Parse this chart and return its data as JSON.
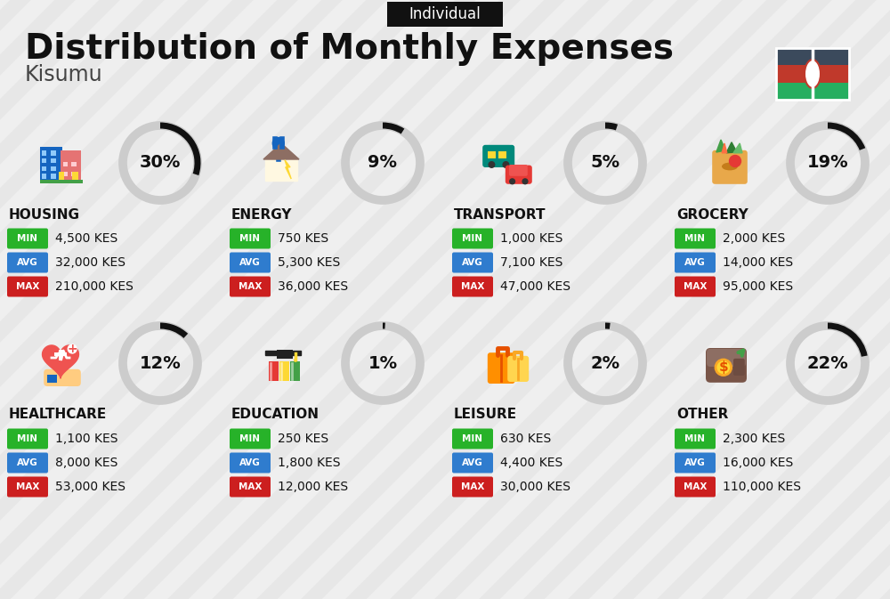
{
  "title": "Distribution of Monthly Expenses",
  "subtitle": "Kisumu",
  "tag": "Individual",
  "bg_color": "#efefef",
  "stripe_color": "#e0e0e0",
  "categories": [
    {
      "name": "HOUSING",
      "pct": 30,
      "min_val": "4,500 KES",
      "avg_val": "32,000 KES",
      "max_val": "210,000 KES",
      "icon": "housing",
      "row": 0,
      "col": 0
    },
    {
      "name": "ENERGY",
      "pct": 9,
      "min_val": "750 KES",
      "avg_val": "5,300 KES",
      "max_val": "36,000 KES",
      "icon": "energy",
      "row": 0,
      "col": 1
    },
    {
      "name": "TRANSPORT",
      "pct": 5,
      "min_val": "1,000 KES",
      "avg_val": "7,100 KES",
      "max_val": "47,000 KES",
      "icon": "transport",
      "row": 0,
      "col": 2
    },
    {
      "name": "GROCERY",
      "pct": 19,
      "min_val": "2,000 KES",
      "avg_val": "14,000 KES",
      "max_val": "95,000 KES",
      "icon": "grocery",
      "row": 0,
      "col": 3
    },
    {
      "name": "HEALTHCARE",
      "pct": 12,
      "min_val": "1,100 KES",
      "avg_val": "8,000 KES",
      "max_val": "53,000 KES",
      "icon": "healthcare",
      "row": 1,
      "col": 0
    },
    {
      "name": "EDUCATION",
      "pct": 1,
      "min_val": "250 KES",
      "avg_val": "1,800 KES",
      "max_val": "12,000 KES",
      "icon": "education",
      "row": 1,
      "col": 1
    },
    {
      "name": "LEISURE",
      "pct": 2,
      "min_val": "630 KES",
      "avg_val": "4,400 KES",
      "max_val": "30,000 KES",
      "icon": "leisure",
      "row": 1,
      "col": 2
    },
    {
      "name": "OTHER",
      "pct": 22,
      "min_val": "2,300 KES",
      "avg_val": "16,000 KES",
      "max_val": "110,000 KES",
      "icon": "other",
      "row": 1,
      "col": 3
    }
  ],
  "min_color": "#27b229",
  "avg_color": "#2f7cce",
  "max_color": "#cc1f1f",
  "donut_dark": "#111111",
  "donut_light": "#cccccc",
  "flag_colors": [
    "#3b4a5c",
    "#c0392b",
    "#27ae60"
  ],
  "title_color": "#111111",
  "subtitle_color": "#444444",
  "tag_bg": "#111111",
  "tag_color": "#ffffff",
  "cat_name_color": "#111111",
  "val_color": "#111111"
}
